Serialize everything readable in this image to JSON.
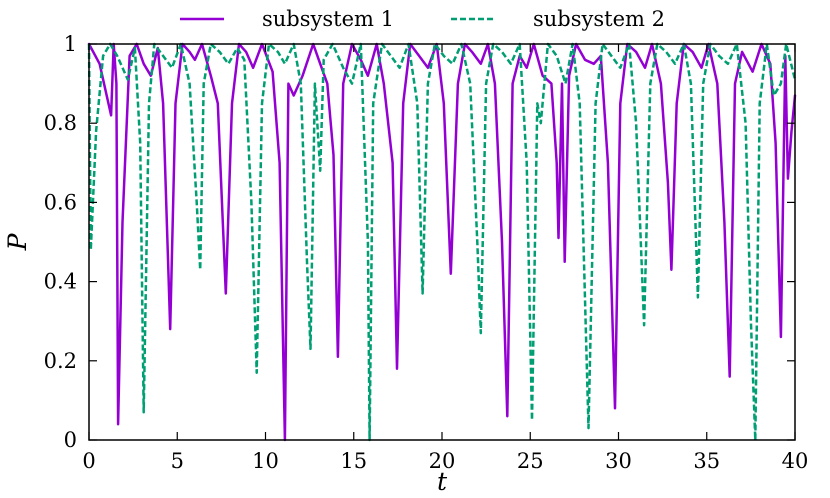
{
  "chart_data": {
    "type": "line",
    "xlabel": "t",
    "ylabel": "P",
    "xlim": [
      0,
      40
    ],
    "ylim": [
      0,
      1
    ],
    "xticks": [
      0,
      5,
      10,
      15,
      20,
      25,
      30,
      35,
      40
    ],
    "yticks": [
      0,
      0.2,
      0.4,
      0.6,
      0.8,
      1
    ],
    "ytick_labels": [
      "0",
      "0.2",
      "0.4",
      "0.6",
      "0.8",
      "1"
    ],
    "grid": false,
    "legend_position": "top",
    "series": [
      {
        "name": "subsystem 1",
        "color": "#9400d3",
        "style": "solid",
        "points": [
          [
            0,
            1
          ],
          [
            0.6,
            0.95
          ],
          [
            1.25,
            0.82
          ],
          [
            1.4,
            1
          ],
          [
            1.55,
            0.9
          ],
          [
            1.65,
            0.04
          ],
          [
            1.9,
            0.55
          ],
          [
            2.3,
            0.97
          ],
          [
            2.7,
            1
          ],
          [
            3.1,
            0.95
          ],
          [
            3.5,
            0.92
          ],
          [
            3.9,
            0.99
          ],
          [
            4.2,
            0.85
          ],
          [
            4.6,
            0.28
          ],
          [
            4.9,
            0.85
          ],
          [
            5.3,
            1
          ],
          [
            5.7,
            0.98
          ],
          [
            6.0,
            0.96
          ],
          [
            6.4,
            1
          ],
          [
            6.9,
            0.92
          ],
          [
            7.3,
            0.85
          ],
          [
            7.75,
            0.37
          ],
          [
            8.1,
            0.85
          ],
          [
            8.5,
            1
          ],
          [
            8.9,
            0.98
          ],
          [
            9.3,
            0.94
          ],
          [
            9.8,
            1
          ],
          [
            10.4,
            0.93
          ],
          [
            10.8,
            0.7
          ],
          [
            11.1,
            0
          ],
          [
            11.3,
            0.9
          ],
          [
            11.6,
            0.87
          ],
          [
            12.1,
            0.92
          ],
          [
            12.7,
            1
          ],
          [
            13.1,
            0.95
          ],
          [
            13.5,
            0.9
          ],
          [
            13.85,
            0.72
          ],
          [
            14.1,
            0.21
          ],
          [
            14.4,
            0.9
          ],
          [
            14.9,
            1
          ],
          [
            15.4,
            0.96
          ],
          [
            15.8,
            0.92
          ],
          [
            16.3,
            1
          ],
          [
            16.7,
            0.9
          ],
          [
            17.2,
            0.7
          ],
          [
            17.45,
            0.18
          ],
          [
            17.8,
            0.85
          ],
          [
            18.2,
            1
          ],
          [
            18.7,
            0.97
          ],
          [
            19.2,
            0.94
          ],
          [
            19.7,
            1
          ],
          [
            20.1,
            0.85
          ],
          [
            20.5,
            0.42
          ],
          [
            20.9,
            0.9
          ],
          [
            21.3,
            1
          ],
          [
            21.7,
            0.98
          ],
          [
            22.2,
            0.95
          ],
          [
            22.6,
            1
          ],
          [
            23.0,
            0.9
          ],
          [
            23.4,
            0.5
          ],
          [
            23.7,
            0.06
          ],
          [
            24.0,
            0.9
          ],
          [
            24.4,
            0.97
          ],
          [
            24.8,
            0.94
          ],
          [
            25.2,
            1
          ],
          [
            25.7,
            0.92
          ],
          [
            26.2,
            0.9
          ],
          [
            26.5,
            0.7
          ],
          [
            26.6,
            0.51
          ],
          [
            26.8,
            0.9
          ],
          [
            26.95,
            0.45
          ],
          [
            27.2,
            0.92
          ],
          [
            27.6,
            1
          ],
          [
            28.1,
            0.96
          ],
          [
            28.6,
            0.95
          ],
          [
            29.0,
            0.97
          ],
          [
            29.4,
            0.7
          ],
          [
            29.8,
            0.08
          ],
          [
            30.1,
            0.85
          ],
          [
            30.5,
            1
          ],
          [
            31.0,
            0.98
          ],
          [
            31.5,
            0.94
          ],
          [
            31.9,
            1
          ],
          [
            32.4,
            0.9
          ],
          [
            32.8,
            0.65
          ],
          [
            33.0,
            0.43
          ],
          [
            33.3,
            0.85
          ],
          [
            33.7,
            1
          ],
          [
            34.2,
            0.98
          ],
          [
            34.7,
            0.94
          ],
          [
            35.1,
            1
          ],
          [
            35.6,
            0.9
          ],
          [
            36.0,
            0.55
          ],
          [
            36.3,
            0.16
          ],
          [
            36.6,
            0.9
          ],
          [
            37.0,
            0.98
          ],
          [
            37.6,
            0.93
          ],
          [
            38.1,
            1
          ],
          [
            38.6,
            0.95
          ],
          [
            38.9,
            0.75
          ],
          [
            39.2,
            0.26
          ],
          [
            39.45,
            0.97
          ],
          [
            39.6,
            0.66
          ],
          [
            39.8,
            0.78
          ],
          [
            40,
            0.87
          ]
        ]
      },
      {
        "name": "subsystem 2",
        "color": "#009e73",
        "style": "dashed",
        "points": [
          [
            0,
            1
          ],
          [
            0.1,
            0.48
          ],
          [
            0.4,
            0.78
          ],
          [
            0.8,
            0.97
          ],
          [
            1.2,
            1
          ],
          [
            1.6,
            0.97
          ],
          [
            2.2,
            0.91
          ],
          [
            2.6,
            0.99
          ],
          [
            2.9,
            0.75
          ],
          [
            3.1,
            0.07
          ],
          [
            3.4,
            0.85
          ],
          [
            3.7,
            1
          ],
          [
            4.2,
            0.97
          ],
          [
            4.7,
            0.94
          ],
          [
            5.2,
            1
          ],
          [
            5.7,
            0.9
          ],
          [
            6.1,
            0.6
          ],
          [
            6.3,
            0.43
          ],
          [
            6.5,
            0.9
          ],
          [
            6.9,
            1
          ],
          [
            7.4,
            0.98
          ],
          [
            7.9,
            0.95
          ],
          [
            8.4,
            0.99
          ],
          [
            8.8,
            0.96
          ],
          [
            9.2,
            0.6
          ],
          [
            9.5,
            0.17
          ],
          [
            9.8,
            0.85
          ],
          [
            10.2,
            1
          ],
          [
            10.7,
            0.98
          ],
          [
            11.1,
            0.95
          ],
          [
            11.6,
            1
          ],
          [
            12.0,
            0.9
          ],
          [
            12.35,
            0.45
          ],
          [
            12.55,
            0.23
          ],
          [
            12.8,
            0.9
          ],
          [
            13.1,
            0.68
          ],
          [
            13.3,
            0.96
          ],
          [
            13.8,
            1
          ],
          [
            14.4,
            0.94
          ],
          [
            14.9,
            0.9
          ],
          [
            15.4,
            1
          ],
          [
            15.8,
            0.5
          ],
          [
            15.9,
            0
          ],
          [
            16.1,
            0.85
          ],
          [
            16.6,
            1
          ],
          [
            17.1,
            0.97
          ],
          [
            17.6,
            0.94
          ],
          [
            18.1,
            1
          ],
          [
            18.6,
            0.85
          ],
          [
            18.9,
            0.37
          ],
          [
            19.2,
            0.9
          ],
          [
            19.6,
            1
          ],
          [
            20.1,
            0.97
          ],
          [
            20.6,
            0.95
          ],
          [
            21.1,
            1
          ],
          [
            21.6,
            0.9
          ],
          [
            22.0,
            0.5
          ],
          [
            22.2,
            0.27
          ],
          [
            22.5,
            0.9
          ],
          [
            22.9,
            1
          ],
          [
            23.4,
            0.98
          ],
          [
            23.9,
            0.95
          ],
          [
            24.4,
            1
          ],
          [
            24.8,
            0.7
          ],
          [
            25.1,
            0.05
          ],
          [
            25.4,
            0.85
          ],
          [
            25.6,
            0.8
          ],
          [
            26.0,
            1
          ],
          [
            26.5,
            0.97
          ],
          [
            27.0,
            0.9
          ],
          [
            27.4,
            1
          ],
          [
            27.8,
            0.85
          ],
          [
            28.3,
            0.03
          ],
          [
            28.7,
            0.85
          ],
          [
            29.1,
            1
          ],
          [
            29.6,
            0.97
          ],
          [
            30.1,
            0.94
          ],
          [
            30.6,
            1
          ],
          [
            31.0,
            0.8
          ],
          [
            31.45,
            0.29
          ],
          [
            31.8,
            0.9
          ],
          [
            32.2,
            1
          ],
          [
            32.7,
            0.98
          ],
          [
            33.2,
            0.95
          ],
          [
            33.7,
            1
          ],
          [
            34.1,
            0.9
          ],
          [
            34.5,
            0.36
          ],
          [
            34.8,
            0.9
          ],
          [
            35.2,
            1
          ],
          [
            35.7,
            0.97
          ],
          [
            36.2,
            0.95
          ],
          [
            36.7,
            1
          ],
          [
            37.2,
            0.8
          ],
          [
            37.5,
            0.3
          ],
          [
            37.75,
            0
          ],
          [
            38.0,
            0.85
          ],
          [
            38.4,
            1
          ],
          [
            38.8,
            0.87
          ],
          [
            39.2,
            0.9
          ],
          [
            39.5,
            1
          ],
          [
            40,
            0.91
          ]
        ]
      }
    ]
  }
}
